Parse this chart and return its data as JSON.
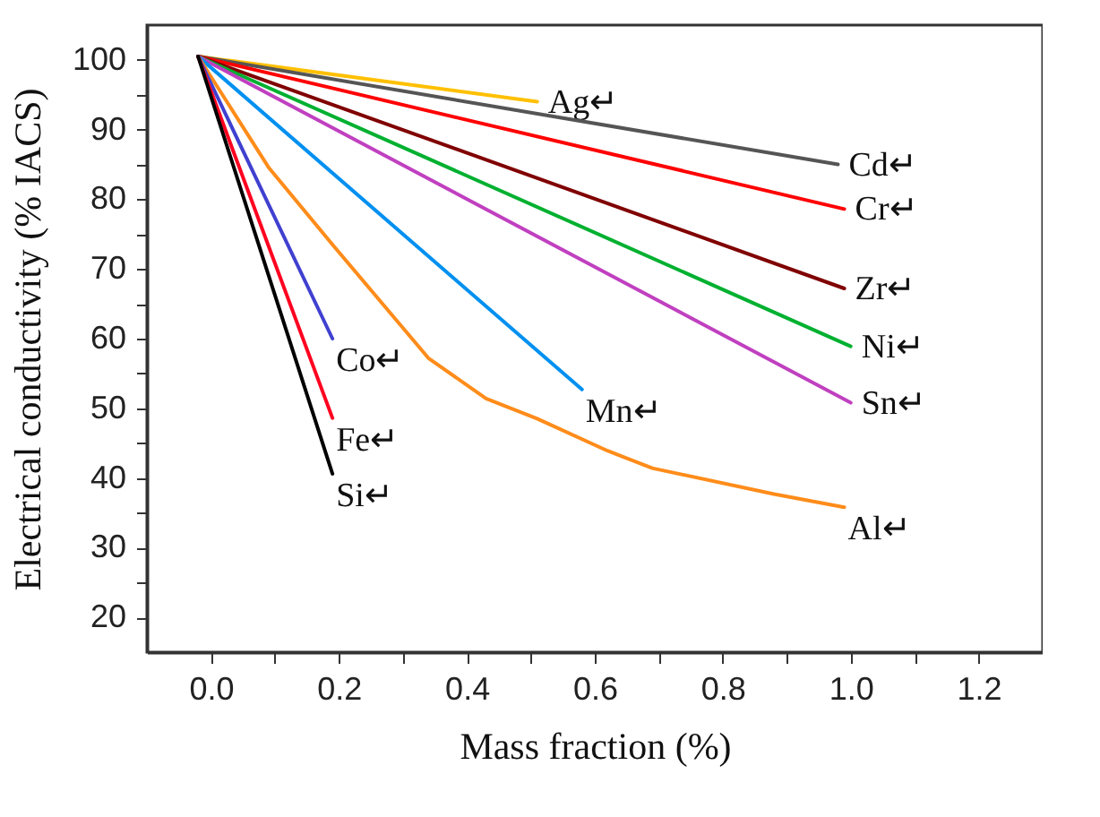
{
  "chart_data": {
    "type": "line",
    "xlabel": "Mass fraction (%)",
    "ylabel": "Electrical conductivity (% IACS)",
    "xlim": [
      -0.1,
      1.3
    ],
    "ylim": [
      15,
      105
    ],
    "xticks": [
      {
        "value": 0.0,
        "label": "0.0"
      },
      {
        "value": 0.1,
        "label": null
      },
      {
        "value": 0.2,
        "label": "0.2"
      },
      {
        "value": 0.3,
        "label": null
      },
      {
        "value": 0.4,
        "label": "0.4"
      },
      {
        "value": 0.5,
        "label": null
      },
      {
        "value": 0.6,
        "label": "0.6"
      },
      {
        "value": 0.7,
        "label": null
      },
      {
        "value": 0.8,
        "label": "0.8"
      },
      {
        "value": 0.9,
        "label": null
      },
      {
        "value": 1.0,
        "label": "1.0"
      },
      {
        "value": 1.1,
        "label": null
      },
      {
        "value": 1.2,
        "label": "1.2"
      }
    ],
    "yticks": [
      20,
      {
        "value": 25,
        "label": null
      },
      30,
      {
        "value": 35,
        "label": null
      },
      40,
      {
        "value": 45,
        "label": null
      },
      50,
      {
        "value": 55,
        "label": null
      },
      60,
      {
        "value": 65,
        "label": null
      },
      70,
      {
        "value": 75,
        "label": null
      },
      80,
      {
        "value": 85,
        "label": null
      },
      90,
      {
        "value": 95,
        "label": null
      },
      100
    ],
    "grid": false,
    "marker": "none",
    "line_style": "solid",
    "series": [
      {
        "name": "Ag↵",
        "color": "#ffc000",
        "x": [
          -0.02,
          0.51
        ],
        "values": [
          100.5,
          94.0
        ]
      },
      {
        "name": "Cd↵",
        "color": "#555555",
        "x": [
          -0.02,
          0.98
        ],
        "values": [
          100.5,
          85.0
        ]
      },
      {
        "name": "Cr↵",
        "color": "#ff0000",
        "x": [
          -0.02,
          0.99
        ],
        "values": [
          100.5,
          78.6
        ]
      },
      {
        "name": "Zr↵",
        "color": "#800000",
        "x": [
          -0.02,
          0.99
        ],
        "values": [
          100.5,
          67.2
        ]
      },
      {
        "name": "Ni↵",
        "color": "#00b030",
        "x": [
          -0.02,
          1.0
        ],
        "values": [
          100.5,
          58.9
        ]
      },
      {
        "name": "Sn↵",
        "color": "#c040c0",
        "x": [
          -0.02,
          1.0
        ],
        "values": [
          100.5,
          50.8
        ]
      },
      {
        "name": "Mn↵",
        "color": "#0090f0",
        "x": [
          -0.02,
          0.58
        ],
        "values": [
          100.5,
          52.7
        ]
      },
      {
        "name": "Al↵",
        "color": "#ff8c1a",
        "x": [
          -0.02,
          0.09,
          0.19,
          0.34,
          0.43,
          0.51,
          0.62,
          0.69,
          0.88,
          0.99
        ],
        "values": [
          100.5,
          84.6,
          73.5,
          57.2,
          51.4,
          48.5,
          43.9,
          41.4,
          37.7,
          35.8
        ]
      },
      {
        "name": "Co↵",
        "color": "#4040d0",
        "x": [
          -0.02,
          0.19
        ],
        "values": [
          100.5,
          60.0
        ]
      },
      {
        "name": "Fe↵",
        "color": "#ff0020",
        "x": [
          -0.02,
          0.19
        ],
        "values": [
          100.5,
          48.6
        ]
      },
      {
        "name": "Si↵",
        "color": "#000000",
        "x": [
          -0.02,
          0.19
        ],
        "values": [
          100.5,
          40.6
        ]
      }
    ]
  }
}
